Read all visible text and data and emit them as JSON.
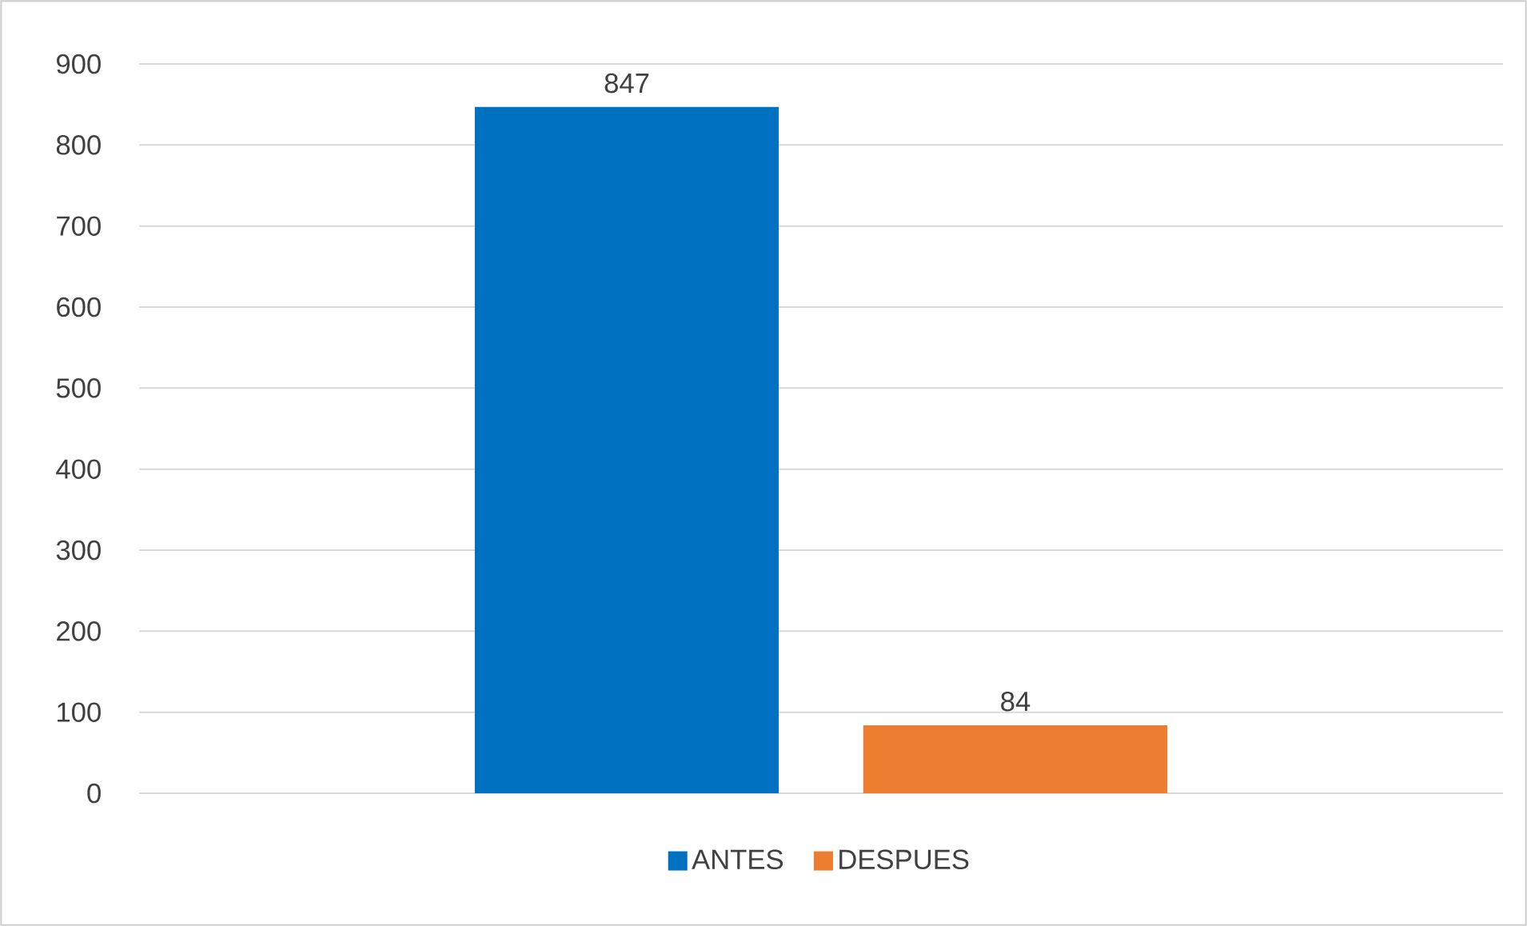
{
  "chart_data": {
    "type": "bar",
    "categories": [
      null
    ],
    "series": [
      {
        "name": "ANTES",
        "color": "#0070c0",
        "values": [
          847
        ]
      },
      {
        "name": "DESPUES",
        "color": "#ed7d31",
        "values": [
          84
        ]
      }
    ],
    "ylim": [
      0,
      900
    ],
    "yticks": [
      0,
      100,
      200,
      300,
      400,
      500,
      600,
      700,
      800,
      900
    ],
    "grid": "y",
    "legend": "bottom",
    "data_labels": true
  }
}
